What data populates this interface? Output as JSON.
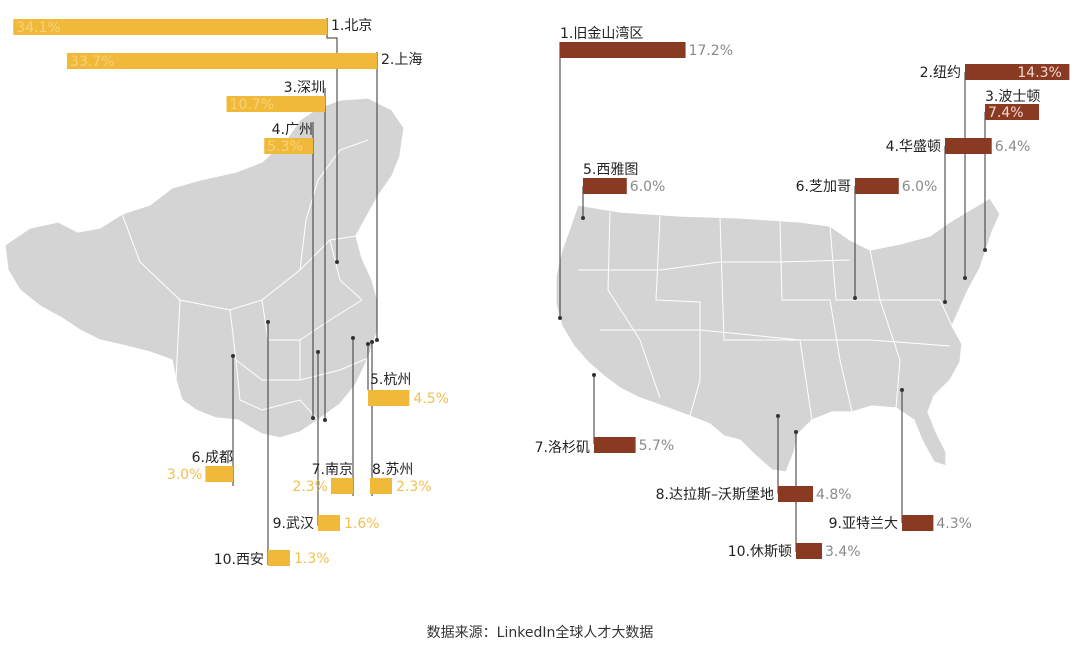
{
  "colors": {
    "map_fill": "#d4d4d4",
    "map_stroke": "#ffffff",
    "china_bar": "#f0b93a",
    "us_bar": "#8a3a22",
    "china_value_text": "#f0c050",
    "us_value_text": "#8a8a8a",
    "label_text": "#222222",
    "leader_line": "#333333"
  },
  "source_text": "数据来源：LinkedIn全球人才大数据",
  "chart_data": [
    {
      "type": "bar",
      "map": "china",
      "categories": [
        "1.北京",
        "2.上海",
        "3.深圳",
        "4.广州",
        "5.杭州",
        "6.成都",
        "7.南京",
        "8.苏州",
        "9.武汉",
        "10.西安"
      ],
      "values": [
        34.1,
        33.7,
        10.7,
        5.3,
        4.5,
        3.0,
        2.3,
        2.3,
        1.6,
        1.3
      ],
      "value_labels": [
        "34.1%",
        "33.7%",
        "10.7%",
        "5.3%",
        "4.5%",
        "3.0%",
        "2.3%",
        "2.3%",
        "1.6%",
        "1.3%"
      ],
      "unit": "%"
    },
    {
      "type": "bar",
      "map": "usa",
      "categories": [
        "1.旧金山湾区",
        "2.纽约",
        "3.波士顿",
        "4.华盛顿",
        "5.西雅图",
        "6.芝加哥",
        "7.洛杉矶",
        "8.达拉斯–沃斯堡地",
        "9.亚特兰大",
        "10.休斯顿"
      ],
      "values": [
        17.2,
        14.3,
        7.4,
        6.4,
        6.0,
        6.0,
        5.7,
        4.8,
        4.3,
        3.4
      ],
      "value_labels": [
        "17.2%",
        "14.3%",
        "7.4%",
        "6.4%",
        "6.0%",
        "6.0%",
        "5.7%",
        "4.8%",
        "4.3%",
        "3.4%"
      ],
      "unit": "%"
    }
  ]
}
